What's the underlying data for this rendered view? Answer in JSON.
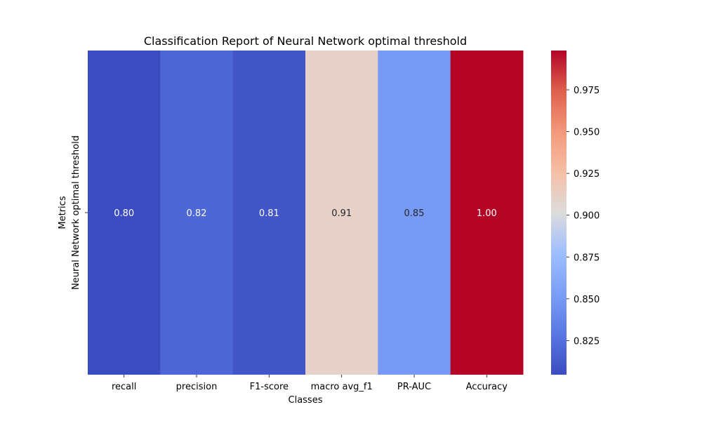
{
  "chart_data": {
    "type": "heatmap",
    "title": "Classification Report of Neural Network optimal threshold",
    "xlabel": "Classes",
    "ylabel": "Metrics",
    "categories": [
      "recall",
      "precision",
      "F1-score",
      "macro avg_f1",
      "PR-AUC",
      "Accuracy"
    ],
    "rows": [
      "Neural Network optimal threshold"
    ],
    "values": [
      [
        0.8,
        0.82,
        0.81,
        0.91,
        0.85,
        1.0
      ]
    ],
    "value_labels": [
      "0.80",
      "0.82",
      "0.81",
      "0.91",
      "0.85",
      "1.00"
    ],
    "colormap": "coolwarm",
    "colorbar": {
      "range": [
        0.8046,
        0.9985
      ],
      "ticks": [
        0.825,
        0.85,
        0.875,
        0.9,
        0.925,
        0.95,
        0.975
      ],
      "tick_labels": [
        "0.825",
        "0.850",
        "0.875",
        "0.900",
        "0.925",
        "0.950",
        "0.975"
      ]
    },
    "grid": false,
    "colors": {
      "cmap_low": "#3b4cc0",
      "cmap_mid": "#dddcdc",
      "cmap_high": "#b40426",
      "annotation_light": "#ffffff",
      "annotation_dark": "#262626"
    }
  }
}
